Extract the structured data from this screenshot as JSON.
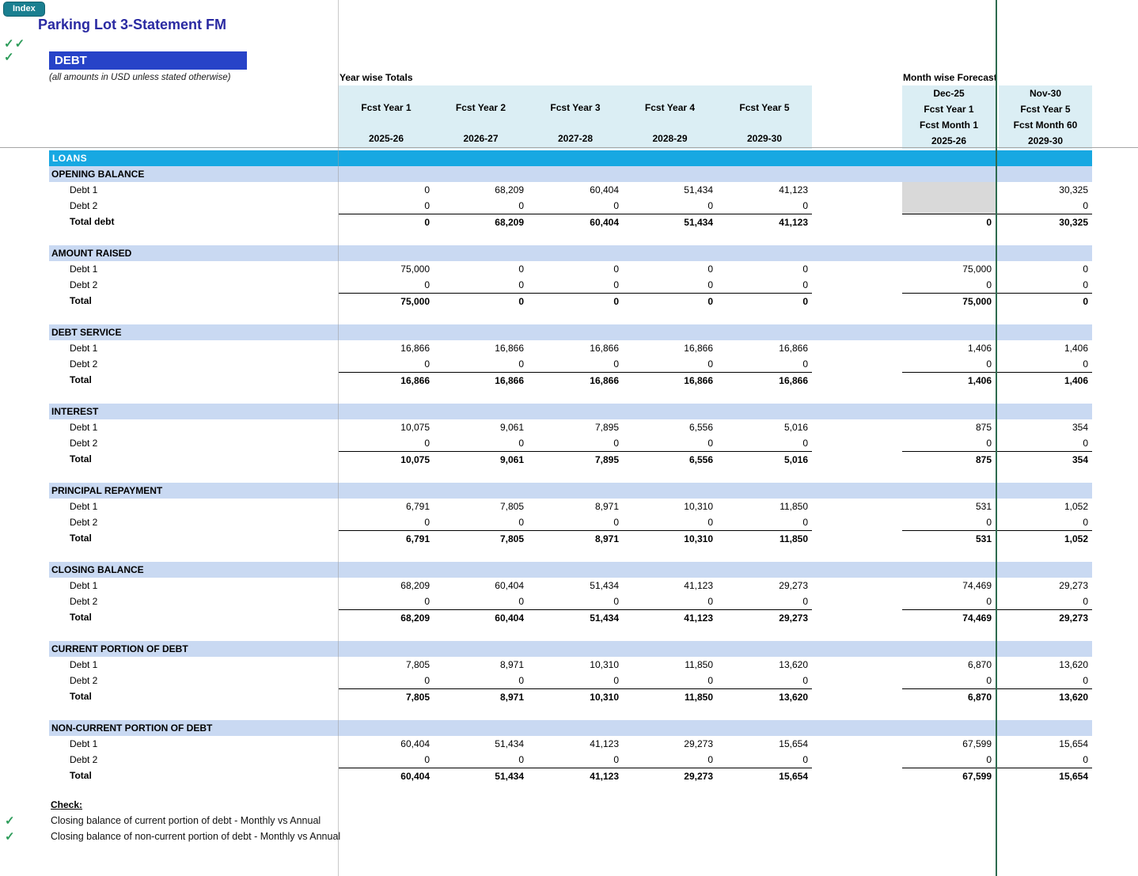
{
  "header": {
    "index_button": "Index",
    "title": "Parking Lot 3-Statement FM",
    "sheet_title": "DEBT",
    "subtitle": "(all amounts in USD unless stated otherwise)",
    "year_totals_label": "Year wise Totals",
    "month_forecast_label": "Month wise Forecast"
  },
  "icons": {
    "check": "✓"
  },
  "colors": {
    "loans_bar": "#17A8E2",
    "section_band": "#C9D9F2",
    "header_band": "#DBEEF4",
    "debt_bar": "#2743C8",
    "index_button": "#1A7F90",
    "check_green": "#2D9C5A",
    "page_break_line": "#2E6B4F",
    "gray_cell": "#D9D9D9"
  },
  "columns": {
    "years": [
      {
        "label": "Fcst Year 1",
        "period": "2025-26"
      },
      {
        "label": "Fcst Year 2",
        "period": "2026-27"
      },
      {
        "label": "Fcst Year 3",
        "period": "2027-28"
      },
      {
        "label": "Fcst Year 4",
        "period": "2028-29"
      },
      {
        "label": "Fcst Year 5",
        "period": "2029-30"
      }
    ],
    "months": [
      {
        "date": "Dec-25",
        "year": "Fcst Year 1",
        "month": "Fcst Month 1",
        "period": "2025-26"
      },
      {
        "date": "Nov-30",
        "year": "Fcst Year 5",
        "month": "Fcst Month 60",
        "period": "2029-30"
      }
    ]
  },
  "table": {
    "group_label": "LOANS",
    "sections": [
      {
        "label": "OPENING BALANCE",
        "rows": [
          {
            "label": "Debt 1",
            "years": [
              "0",
              "68,209",
              "60,404",
              "51,434",
              "41,123"
            ],
            "months": [
              null,
              "30,325"
            ]
          },
          {
            "label": "Debt 2",
            "years": [
              "0",
              "0",
              "0",
              "0",
              "0"
            ],
            "months": [
              null,
              "0"
            ]
          },
          {
            "label": "Total debt",
            "bold": true,
            "years": [
              "0",
              "68,209",
              "60,404",
              "51,434",
              "41,123"
            ],
            "months": [
              "0",
              "30,325"
            ]
          }
        ]
      },
      {
        "label": "AMOUNT RAISED",
        "rows": [
          {
            "label": "Debt 1",
            "years": [
              "75,000",
              "0",
              "0",
              "0",
              "0"
            ],
            "months": [
              "75,000",
              "0"
            ]
          },
          {
            "label": "Debt 2",
            "years": [
              "0",
              "0",
              "0",
              "0",
              "0"
            ],
            "months": [
              "0",
              "0"
            ]
          },
          {
            "label": "Total",
            "bold": true,
            "years": [
              "75,000",
              "0",
              "0",
              "0",
              "0"
            ],
            "months": [
              "75,000",
              "0"
            ]
          }
        ]
      },
      {
        "label": "DEBT SERVICE",
        "rows": [
          {
            "label": "Debt 1",
            "years": [
              "16,866",
              "16,866",
              "16,866",
              "16,866",
              "16,866"
            ],
            "months": [
              "1,406",
              "1,406"
            ]
          },
          {
            "label": "Debt 2",
            "years": [
              "0",
              "0",
              "0",
              "0",
              "0"
            ],
            "months": [
              "0",
              "0"
            ]
          },
          {
            "label": "Total",
            "bold": true,
            "years": [
              "16,866",
              "16,866",
              "16,866",
              "16,866",
              "16,866"
            ],
            "months": [
              "1,406",
              "1,406"
            ]
          }
        ]
      },
      {
        "label": "INTEREST",
        "rows": [
          {
            "label": "Debt 1",
            "years": [
              "10,075",
              "9,061",
              "7,895",
              "6,556",
              "5,016"
            ],
            "months": [
              "875",
              "354"
            ]
          },
          {
            "label": "Debt 2",
            "years": [
              "0",
              "0",
              "0",
              "0",
              "0"
            ],
            "months": [
              "0",
              "0"
            ]
          },
          {
            "label": "Total",
            "bold": true,
            "years": [
              "10,075",
              "9,061",
              "7,895",
              "6,556",
              "5,016"
            ],
            "months": [
              "875",
              "354"
            ]
          }
        ]
      },
      {
        "label": "PRINCIPAL REPAYMENT",
        "rows": [
          {
            "label": "Debt 1",
            "years": [
              "6,791",
              "7,805",
              "8,971",
              "10,310",
              "11,850"
            ],
            "months": [
              "531",
              "1,052"
            ]
          },
          {
            "label": "Debt 2",
            "years": [
              "0",
              "0",
              "0",
              "0",
              "0"
            ],
            "months": [
              "0",
              "0"
            ]
          },
          {
            "label": "Total",
            "bold": true,
            "years": [
              "6,791",
              "7,805",
              "8,971",
              "10,310",
              "11,850"
            ],
            "months": [
              "531",
              "1,052"
            ]
          }
        ]
      },
      {
        "label": "CLOSING BALANCE",
        "rows": [
          {
            "label": "Debt 1",
            "years": [
              "68,209",
              "60,404",
              "51,434",
              "41,123",
              "29,273"
            ],
            "months": [
              "74,469",
              "29,273"
            ]
          },
          {
            "label": "Debt 2",
            "years": [
              "0",
              "0",
              "0",
              "0",
              "0"
            ],
            "months": [
              "0",
              "0"
            ]
          },
          {
            "label": "Total",
            "bold": true,
            "years": [
              "68,209",
              "60,404",
              "51,434",
              "41,123",
              "29,273"
            ],
            "months": [
              "74,469",
              "29,273"
            ]
          }
        ]
      },
      {
        "label": "CURRENT PORTION OF DEBT",
        "rows": [
          {
            "label": "Debt 1",
            "years": [
              "7,805",
              "8,971",
              "10,310",
              "11,850",
              "13,620"
            ],
            "months": [
              "6,870",
              "13,620"
            ]
          },
          {
            "label": "Debt 2",
            "years": [
              "0",
              "0",
              "0",
              "0",
              "0"
            ],
            "months": [
              "0",
              "0"
            ]
          },
          {
            "label": "Total",
            "bold": true,
            "years": [
              "7,805",
              "8,971",
              "10,310",
              "11,850",
              "13,620"
            ],
            "months": [
              "6,870",
              "13,620"
            ]
          }
        ]
      },
      {
        "label": "NON-CURRENT PORTION OF DEBT",
        "rows": [
          {
            "label": "Debt 1",
            "years": [
              "60,404",
              "51,434",
              "41,123",
              "29,273",
              "15,654"
            ],
            "months": [
              "67,599",
              "15,654"
            ]
          },
          {
            "label": "Debt 2",
            "years": [
              "0",
              "0",
              "0",
              "0",
              "0"
            ],
            "months": [
              "0",
              "0"
            ]
          },
          {
            "label": "Total",
            "bold": true,
            "years": [
              "60,404",
              "51,434",
              "41,123",
              "29,273",
              "15,654"
            ],
            "months": [
              "67,599",
              "15,654"
            ]
          }
        ]
      }
    ]
  },
  "checks": {
    "label": "Check:",
    "items": [
      "Closing balance of current portion of debt - Monthly vs Annual",
      "Closing balance of non-current portion of debt - Monthly vs Annual"
    ]
  }
}
